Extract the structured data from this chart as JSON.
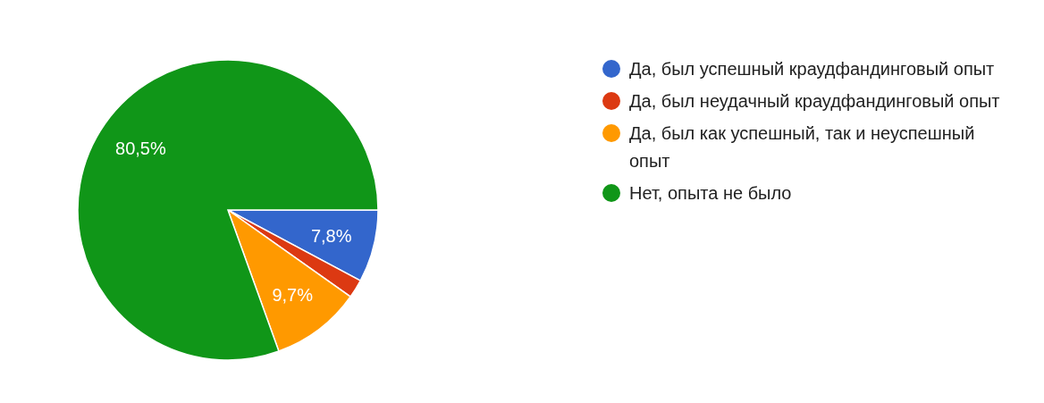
{
  "chart_data": {
    "type": "pie",
    "categories": [
      "Да, был успешный краудфандинговый опыт",
      "Да, был неудачный краудфандинговый опыт",
      "Да, был как успешный, так и неуспешный опыт",
      "Нет, опыта не было"
    ],
    "values": [
      7.8,
      2.0,
      9.7,
      80.5
    ],
    "colors": [
      "#3366cc",
      "#dc3912",
      "#ff9900",
      "#109618"
    ],
    "value_labels": [
      "7,8%",
      null,
      "9,7%",
      "80,5%"
    ],
    "legend": "right"
  }
}
